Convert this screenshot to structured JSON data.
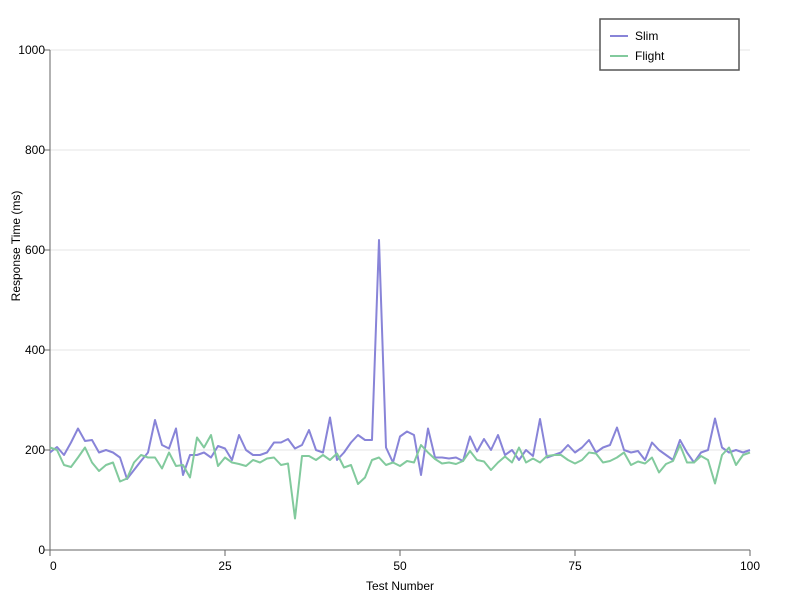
{
  "chart_data": {
    "type": "line",
    "title": "",
    "xlabel": "Test Number",
    "ylabel": "Response Time (ms)",
    "xlim": [
      0,
      100
    ],
    "ylim": [
      0,
      1000
    ],
    "x_ticks": [
      0,
      25,
      50,
      75,
      100
    ],
    "y_ticks": [
      0,
      200,
      400,
      600,
      800,
      1000
    ],
    "grid": "horizontal",
    "legend_position": "top-right",
    "x": [
      0,
      1,
      2,
      3,
      4,
      5,
      6,
      7,
      8,
      9,
      10,
      11,
      12,
      13,
      14,
      15,
      16,
      17,
      18,
      19,
      20,
      21,
      22,
      23,
      24,
      25,
      26,
      27,
      28,
      29,
      30,
      31,
      32,
      33,
      34,
      35,
      36,
      37,
      38,
      39,
      40,
      41,
      42,
      43,
      44,
      45,
      46,
      47,
      48,
      49,
      50,
      51,
      52,
      53,
      54,
      55,
      56,
      57,
      58,
      59,
      60,
      61,
      62,
      63,
      64,
      65,
      66,
      67,
      68,
      69,
      70,
      71,
      72,
      73,
      74,
      75,
      76,
      77,
      78,
      79,
      80,
      81,
      82,
      83,
      84,
      85,
      86,
      87,
      88,
      89,
      90,
      91,
      92,
      93,
      94,
      95,
      96,
      97,
      98,
      99,
      100
    ],
    "series": [
      {
        "name": "Slim",
        "color": "#8884d8",
        "values": [
          195,
          206,
          190,
          215,
          243,
          218,
          220,
          195,
          200,
          195,
          185,
          142,
          160,
          178,
          195,
          260,
          210,
          203,
          243,
          150,
          190,
          190,
          195,
          185,
          208,
          203,
          180,
          230,
          200,
          190,
          190,
          195,
          215,
          215,
          222,
          203,
          210,
          240,
          200,
          195,
          265,
          180,
          195,
          215,
          230,
          220,
          220,
          620,
          205,
          175,
          227,
          237,
          230,
          150,
          243,
          185,
          185,
          183,
          185,
          178,
          227,
          197,
          222,
          200,
          230,
          190,
          200,
          180,
          200,
          188,
          262,
          185,
          190,
          195,
          210,
          195,
          205,
          220,
          195,
          205,
          210,
          245,
          200,
          195,
          198,
          180,
          215,
          200,
          190,
          180,
          220,
          195,
          175,
          195,
          200,
          263,
          205,
          195,
          200,
          195,
          200
        ]
      },
      {
        "name": "Flight",
        "color": "#82ca9d",
        "values": [
          205,
          200,
          170,
          166,
          185,
          205,
          175,
          158,
          170,
          175,
          137,
          143,
          175,
          190,
          185,
          185,
          163,
          195,
          168,
          170,
          145,
          225,
          205,
          230,
          168,
          185,
          175,
          172,
          168,
          180,
          175,
          183,
          185,
          170,
          173,
          63,
          188,
          188,
          180,
          190,
          180,
          193,
          165,
          170,
          132,
          145,
          180,
          185,
          170,
          175,
          168,
          178,
          175,
          210,
          195,
          182,
          173,
          175,
          172,
          178,
          198,
          180,
          177,
          160,
          175,
          187,
          175,
          205,
          175,
          183,
          175,
          188,
          190,
          190,
          180,
          173,
          180,
          195,
          193,
          175,
          178,
          185,
          195,
          170,
          177,
          173,
          185,
          155,
          172,
          178,
          210,
          175,
          175,
          188,
          180,
          133,
          190,
          205,
          170,
          190,
          195
        ]
      }
    ]
  }
}
